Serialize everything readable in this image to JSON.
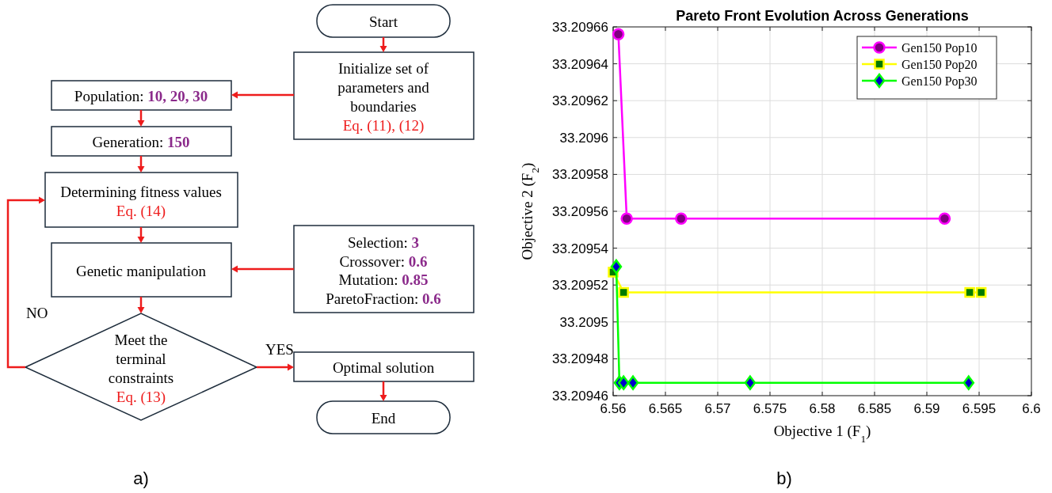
{
  "chart_data": [
    {
      "type": "other",
      "annotations": [
        "Start",
        "Initialize set of",
        "parameters and",
        "boundaries",
        "Eq. (11), (12)",
        "Population: 10, 20, 30",
        "Generation: 150",
        "Determining fitness values",
        "Eq. (14)",
        "Selection: 3",
        "Crossover: 0.6",
        "Mutation: 0.85",
        "ParetoFraction: 0.6",
        "Genetic manipulation",
        "Meet the",
        "terminal",
        "constraints",
        "Eq. (13)",
        "NO",
        "YES",
        "Optimal solution",
        "End",
        "a)"
      ]
    },
    {
      "type": "line",
      "title": "Pareto Front Evolution Across Generations",
      "xlabel": "Objective 1 (F$_{1}$)",
      "ylabel": "Objective 2 (F$_{2}$)",
      "annotations": [
        "b)"
      ],
      "xlim": [
        6.56,
        6.6
      ],
      "xticks": [
        6.56,
        6.565,
        6.57,
        6.575,
        6.58,
        6.585,
        6.59,
        6.595,
        6.6
      ],
      "ylim": [
        33.20946,
        33.20966
      ],
      "yticks": [
        33.20946,
        33.20948,
        33.2095,
        33.20952,
        33.20954,
        33.20956,
        33.20958,
        33.2096,
        33.20962,
        33.20964,
        33.20966
      ],
      "grid": true,
      "legend": "top right",
      "series": [
        {
          "name": "Gen150 Pop10",
          "color": "#ff00ff",
          "marker": "circle",
          "x": [
            6.5605,
            6.5613,
            6.5665,
            6.5917
          ],
          "values": [
            33.209656,
            33.209556,
            33.209556,
            33.209556
          ]
        },
        {
          "name": "Gen150 Pop20",
          "color": "#ffff00",
          "marker": "square",
          "x": [
            6.56,
            6.561,
            6.5941,
            6.5952
          ],
          "values": [
            33.209527,
            33.209516,
            33.209516,
            33.209516
          ]
        },
        {
          "name": "Gen150 Pop30",
          "color": "#00ff00",
          "marker": "diamond",
          "x": [
            6.5603,
            6.5606,
            6.561,
            6.5619,
            6.5731,
            6.594
          ],
          "values": [
            33.20953,
            33.209467,
            33.209467,
            33.209467,
            33.209467,
            33.209467
          ]
        }
      ]
    }
  ]
}
